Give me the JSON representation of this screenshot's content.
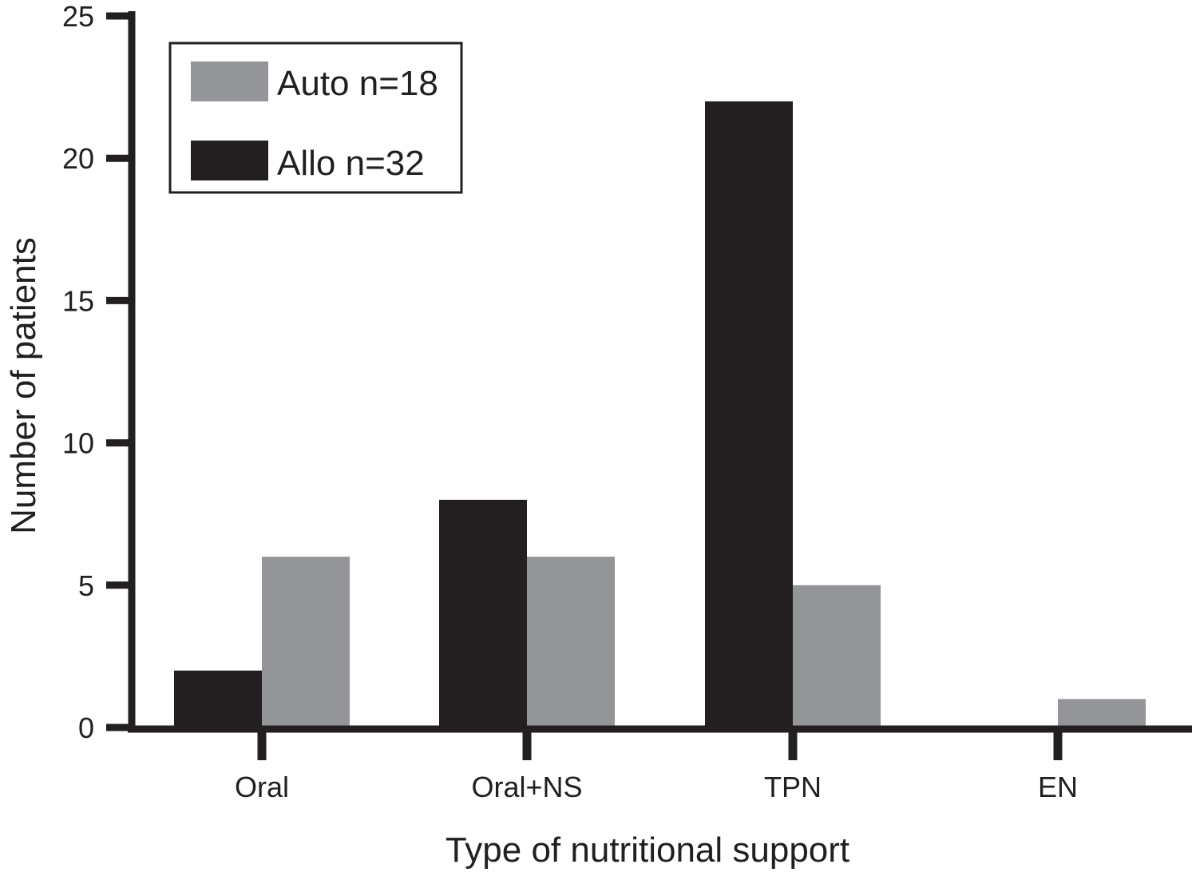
{
  "chart_data": {
    "type": "bar",
    "title": "",
    "xlabel": "Type of nutritional support",
    "ylabel": "Number of patients",
    "categories": [
      "Oral",
      "Oral+NS",
      "TPN",
      "EN"
    ],
    "series": [
      {
        "name": "Allo n=32",
        "color": "#231f20",
        "values": [
          2,
          8,
          22,
          0
        ]
      },
      {
        "name": "Auto n=18",
        "color": "#939598",
        "values": [
          6,
          6,
          5,
          1
        ]
      }
    ],
    "legend_order": [
      "Auto n=18",
      "Allo n=32"
    ],
    "yticks": [
      "0",
      "5",
      "10",
      "15",
      "20",
      "25"
    ],
    "ylim": [
      0,
      25
    ],
    "grid": false,
    "legend_position": "top-left"
  }
}
